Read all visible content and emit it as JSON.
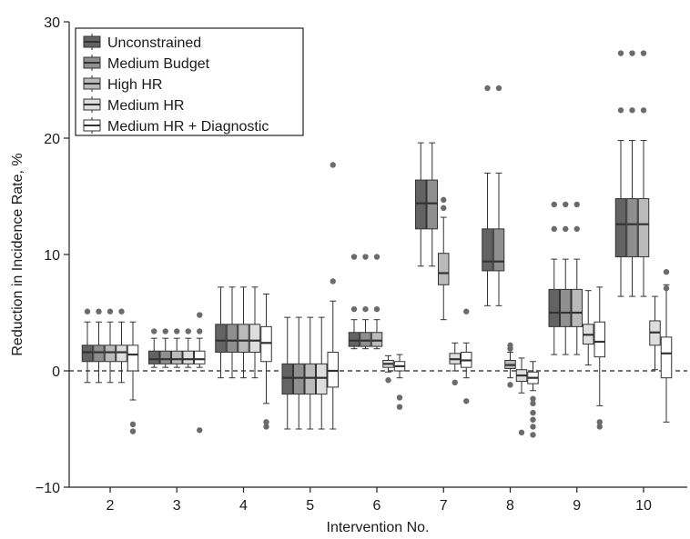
{
  "chart_data": {
    "type": "boxplot",
    "xlabel": "Intervention No.",
    "ylabel": "Reduction in Incidence Rate, %",
    "ylim": [
      -10,
      30
    ],
    "yticks": [
      -10,
      0,
      10,
      20,
      30
    ],
    "ytick_labels": [
      "−10",
      "0",
      "10",
      "20",
      "30"
    ],
    "categories": [
      "2",
      "3",
      "4",
      "5",
      "6",
      "7",
      "8",
      "9",
      "10"
    ],
    "reference_line": {
      "y": 0,
      "style": "dashed"
    },
    "legend_position": "top-left",
    "series": [
      {
        "name": "Unconstrained",
        "color": "#636363",
        "boxes": [
          {
            "category": "2",
            "q1": 0.8,
            "median": 1.6,
            "q3": 2.2,
            "whisker_low": -1.0,
            "whisker_high": 4.2,
            "outliers": [
              5.1
            ]
          },
          {
            "category": "3",
            "q1": 0.6,
            "median": 1.0,
            "q3": 1.7,
            "whisker_low": 0.3,
            "whisker_high": 2.8,
            "outliers": [
              3.4
            ]
          },
          {
            "category": "4",
            "q1": 1.6,
            "median": 2.6,
            "q3": 4.0,
            "whisker_low": -0.6,
            "whisker_high": 7.2,
            "outliers": []
          },
          {
            "category": "5",
            "q1": -2.0,
            "median": -0.6,
            "q3": 0.6,
            "whisker_low": -5.0,
            "whisker_high": 4.6,
            "outliers": []
          },
          {
            "category": "6",
            "q1": 2.1,
            "median": 2.6,
            "q3": 3.3,
            "whisker_low": 1.9,
            "whisker_high": 4.4,
            "outliers": [
              5.3,
              9.8
            ]
          },
          {
            "category": "7",
            "q1": 12.2,
            "median": 14.4,
            "q3": 16.4,
            "whisker_low": 9.0,
            "whisker_high": 19.6,
            "outliers": []
          },
          {
            "category": "8",
            "q1": 8.6,
            "median": 9.4,
            "q3": 12.2,
            "whisker_low": 5.6,
            "whisker_high": 17.0,
            "outliers": [
              24.3
            ]
          },
          {
            "category": "9",
            "q1": 3.8,
            "median": 5.0,
            "q3": 7.0,
            "whisker_low": 1.4,
            "whisker_high": 9.6,
            "outliers": [
              12.2,
              14.3
            ]
          },
          {
            "category": "10",
            "q1": 9.8,
            "median": 12.6,
            "q3": 14.8,
            "whisker_low": 6.4,
            "whisker_high": 19.8,
            "outliers": [
              22.4,
              27.3
            ]
          }
        ]
      },
      {
        "name": "Medium Budget",
        "color": "#8f8f8f",
        "boxes": [
          {
            "category": "2",
            "q1": 0.8,
            "median": 1.6,
            "q3": 2.2,
            "whisker_low": -1.0,
            "whisker_high": 4.2,
            "outliers": [
              5.1
            ]
          },
          {
            "category": "3",
            "q1": 0.6,
            "median": 1.0,
            "q3": 1.7,
            "whisker_low": 0.3,
            "whisker_high": 2.8,
            "outliers": [
              3.4
            ]
          },
          {
            "category": "4",
            "q1": 1.6,
            "median": 2.6,
            "q3": 4.0,
            "whisker_low": -0.6,
            "whisker_high": 7.2,
            "outliers": []
          },
          {
            "category": "5",
            "q1": -2.0,
            "median": -0.6,
            "q3": 0.6,
            "whisker_low": -5.0,
            "whisker_high": 4.6,
            "outliers": []
          },
          {
            "category": "6",
            "q1": 2.1,
            "median": 2.6,
            "q3": 3.3,
            "whisker_low": 1.9,
            "whisker_high": 4.4,
            "outliers": [
              5.3,
              9.8
            ]
          },
          {
            "category": "7",
            "q1": 12.2,
            "median": 14.4,
            "q3": 16.4,
            "whisker_low": 9.0,
            "whisker_high": 19.6,
            "outliers": []
          },
          {
            "category": "8",
            "q1": 8.6,
            "median": 9.4,
            "q3": 12.2,
            "whisker_low": 5.6,
            "whisker_high": 17.0,
            "outliers": [
              24.3
            ]
          },
          {
            "category": "9",
            "q1": 3.8,
            "median": 5.0,
            "q3": 7.0,
            "whisker_low": 1.4,
            "whisker_high": 9.6,
            "outliers": [
              12.2,
              14.3
            ]
          },
          {
            "category": "10",
            "q1": 9.8,
            "median": 12.6,
            "q3": 14.8,
            "whisker_low": 6.4,
            "whisker_high": 19.8,
            "outliers": [
              22.4,
              27.3
            ]
          }
        ]
      },
      {
        "name": "High HR",
        "color": "#bababa",
        "boxes": [
          {
            "category": "2",
            "q1": 0.8,
            "median": 1.6,
            "q3": 2.2,
            "whisker_low": -1.0,
            "whisker_high": 4.2,
            "outliers": [
              5.1
            ]
          },
          {
            "category": "3",
            "q1": 0.6,
            "median": 1.0,
            "q3": 1.7,
            "whisker_low": 0.3,
            "whisker_high": 2.8,
            "outliers": [
              3.4
            ]
          },
          {
            "category": "4",
            "q1": 1.6,
            "median": 2.6,
            "q3": 4.0,
            "whisker_low": -0.6,
            "whisker_high": 7.2,
            "outliers": []
          },
          {
            "category": "5",
            "q1": -2.0,
            "median": -0.6,
            "q3": 0.6,
            "whisker_low": -5.0,
            "whisker_high": 4.6,
            "outliers": []
          },
          {
            "category": "6",
            "q1": 2.1,
            "median": 2.6,
            "q3": 3.3,
            "whisker_low": 1.9,
            "whisker_high": 4.4,
            "outliers": [
              5.3,
              9.8
            ]
          },
          {
            "category": "7",
            "q1": 7.4,
            "median": 8.4,
            "q3": 10.1,
            "whisker_low": 4.4,
            "whisker_high": 13.2,
            "outliers": [
              14.0,
              14.7
            ]
          },
          {
            "category": "8",
            "q1": 0.2,
            "median": 0.5,
            "q3": 0.9,
            "whisker_low": -0.6,
            "whisker_high": 1.6,
            "outliers": [
              -1.2,
              1.9,
              2.2
            ]
          },
          {
            "category": "9",
            "q1": 3.8,
            "median": 5.0,
            "q3": 7.0,
            "whisker_low": 1.4,
            "whisker_high": 9.6,
            "outliers": [
              12.2,
              14.3
            ]
          },
          {
            "category": "10",
            "q1": 9.8,
            "median": 12.6,
            "q3": 14.8,
            "whisker_low": 6.4,
            "whisker_high": 19.8,
            "outliers": [
              22.4,
              27.3
            ]
          }
        ]
      },
      {
        "name": "Medium HR",
        "color": "#dedede",
        "boxes": [
          {
            "category": "2",
            "q1": 0.8,
            "median": 1.6,
            "q3": 2.2,
            "whisker_low": -1.0,
            "whisker_high": 4.2,
            "outliers": [
              5.1
            ]
          },
          {
            "category": "3",
            "q1": 0.6,
            "median": 1.0,
            "q3": 1.7,
            "whisker_low": 0.3,
            "whisker_high": 2.8,
            "outliers": [
              3.4
            ]
          },
          {
            "category": "4",
            "q1": 1.6,
            "median": 2.6,
            "q3": 4.0,
            "whisker_low": -0.6,
            "whisker_high": 7.2,
            "outliers": []
          },
          {
            "category": "5",
            "q1": -2.0,
            "median": -0.6,
            "q3": 0.6,
            "whisker_low": -5.0,
            "whisker_high": 4.6,
            "outliers": []
          },
          {
            "category": "6",
            "q1": 0.3,
            "median": 0.6,
            "q3": 0.9,
            "whisker_low": -0.1,
            "whisker_high": 1.3,
            "outliers": [
              -0.8
            ]
          },
          {
            "category": "7",
            "q1": 0.6,
            "median": 1.0,
            "q3": 1.5,
            "whisker_low": 0.0,
            "whisker_high": 2.4,
            "outliers": [
              -1.0
            ]
          },
          {
            "category": "8",
            "q1": -0.9,
            "median": -0.4,
            "q3": 0.1,
            "whisker_low": -1.9,
            "whisker_high": 1.1,
            "outliers": [
              -5.3
            ]
          },
          {
            "category": "9",
            "q1": 2.3,
            "median": 3.1,
            "q3": 4.0,
            "whisker_low": 0.5,
            "whisker_high": 6.9,
            "outliers": []
          },
          {
            "category": "10",
            "q1": 2.2,
            "median": 3.3,
            "q3": 4.3,
            "whisker_low": 0.1,
            "whisker_high": 6.4,
            "outliers": []
          }
        ]
      },
      {
        "name": "Medium HR + Diagnostic",
        "color": "#ffffff",
        "boxes": [
          {
            "category": "2",
            "q1": 0.0,
            "median": 1.4,
            "q3": 2.2,
            "whisker_low": -2.5,
            "whisker_high": 4.2,
            "outliers": [
              -4.6,
              -5.2
            ]
          },
          {
            "category": "3",
            "q1": 0.6,
            "median": 1.0,
            "q3": 1.7,
            "whisker_low": 0.3,
            "whisker_high": 2.8,
            "outliers": [
              3.4,
              4.8,
              -5.1
            ]
          },
          {
            "category": "4",
            "q1": 0.8,
            "median": 2.4,
            "q3": 3.8,
            "whisker_low": -2.8,
            "whisker_high": 6.6,
            "outliers": [
              -4.4,
              -4.8
            ]
          },
          {
            "category": "5",
            "q1": -1.4,
            "median": 0.0,
            "q3": 1.6,
            "whisker_low": -5.0,
            "whisker_high": 6.0,
            "outliers": [
              7.7,
              17.7
            ]
          },
          {
            "category": "6",
            "q1": 0.0,
            "median": 0.4,
            "q3": 0.8,
            "whisker_low": -0.6,
            "whisker_high": 1.4,
            "outliers": [
              -2.3,
              -3.1
            ]
          },
          {
            "category": "7",
            "q1": 0.3,
            "median": 0.9,
            "q3": 1.6,
            "whisker_low": -0.6,
            "whisker_high": 2.4,
            "outliers": [
              5.1,
              -2.6
            ]
          },
          {
            "category": "8",
            "q1": -1.1,
            "median": -0.6,
            "q3": -0.1,
            "whisker_low": -1.7,
            "whisker_high": 0.8,
            "outliers": [
              -2.4,
              -2.8,
              -3.6,
              -4.2,
              -4.8,
              -5.5
            ]
          },
          {
            "category": "9",
            "q1": 1.2,
            "median": 2.5,
            "q3": 4.2,
            "whisker_low": -3.0,
            "whisker_high": 7.2,
            "outliers": [
              -4.4,
              -4.8
            ]
          },
          {
            "category": "10",
            "q1": -0.6,
            "median": 1.5,
            "q3": 2.9,
            "whisker_low": -4.4,
            "whisker_high": 7.4,
            "outliers": [
              7.1,
              8.5
            ]
          }
        ]
      }
    ]
  }
}
